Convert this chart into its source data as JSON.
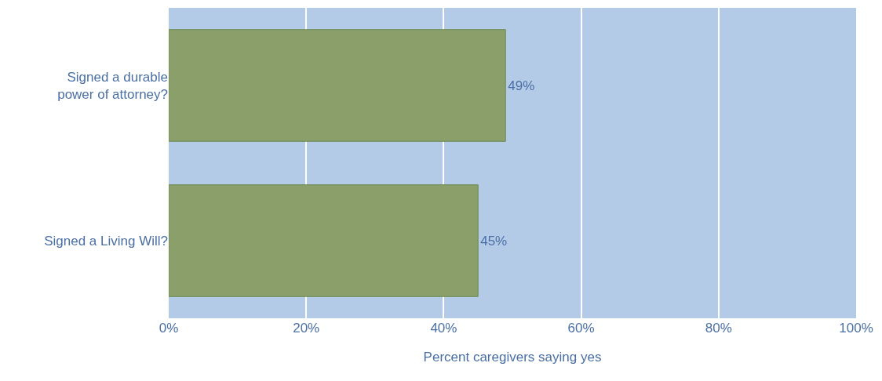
{
  "chart_data": {
    "type": "bar",
    "orientation": "horizontal",
    "categories": [
      "Signed a durable\npower of attorney?",
      "Signed a Living Will?"
    ],
    "values": [
      49,
      45
    ],
    "color": "#8a9f6a",
    "value_labels": [
      "49%",
      "45%"
    ],
    "xlabel": "Percent caregivers saying yes",
    "xlim": [
      0,
      100
    ],
    "xticks": [
      {
        "value": 0,
        "label": "0%"
      },
      {
        "value": 20,
        "label": "20%"
      },
      {
        "value": 40,
        "label": "40%"
      },
      {
        "value": 60,
        "label": "60%"
      },
      {
        "value": 80,
        "label": "80%"
      },
      {
        "value": 100,
        "label": "100%"
      }
    ],
    "grid": "x",
    "legend": false
  }
}
